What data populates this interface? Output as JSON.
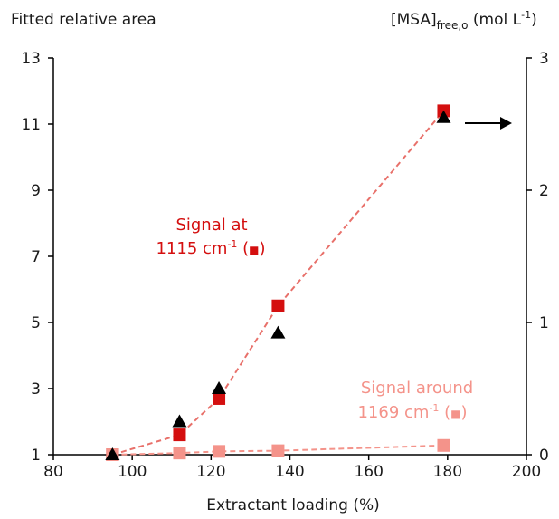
{
  "chart_data": {
    "type": "scatter",
    "ylabel_left": "Fitted relative area",
    "ylabel_right": {
      "main": "[MSA]",
      "sub": "free,o",
      "tail": " (mol L",
      "sup": "-1",
      "end": ")"
    },
    "xlabel": "Extractant loading (%)",
    "xlim": [
      80,
      200
    ],
    "ylim_left": [
      1,
      13
    ],
    "ylim_right": [
      0,
      3
    ],
    "x_ticks": [
      "80",
      "100",
      "120",
      "140",
      "160",
      "180",
      "200"
    ],
    "y_left_ticks": [
      "1",
      "3",
      "5",
      "7",
      "9",
      "11",
      "13"
    ],
    "y_right_ticks": [
      "0",
      "1",
      "2",
      "3"
    ],
    "grid": false,
    "series": [
      {
        "key": "signal_1115",
        "axis": "left",
        "marker": "square",
        "color": "#d40f0f",
        "line_color": "#e8706a",
        "x": [
          95,
          112,
          122,
          137,
          179
        ],
        "y": [
          1.0,
          1.6,
          2.7,
          5.5,
          11.4
        ]
      },
      {
        "key": "signal_1169",
        "axis": "left",
        "marker": "square",
        "color": "#f4938a",
        "line_color": "#f4938a",
        "x": [
          95,
          112,
          122,
          137,
          179
        ],
        "y": [
          1.0,
          1.05,
          1.1,
          1.12,
          1.28
        ]
      },
      {
        "key": "msa_free",
        "axis": "right",
        "marker": "triangle",
        "color": "#000000",
        "x": [
          95,
          112,
          122,
          137,
          179
        ],
        "y": [
          0.0,
          0.25,
          0.5,
          0.92,
          2.55
        ]
      }
    ],
    "annotations": {
      "signal_1115": {
        "line1": "Signal at",
        "line2a": "1115 cm",
        "sup": "-1",
        "line2b": " (",
        "marker": "■",
        "line2c": ")",
        "color": "#d40f0f"
      },
      "signal_1169": {
        "line1": "Signal around",
        "line2a": "1169 cm",
        "sup": "-1",
        "line2b": " (",
        "marker": "■",
        "line2c": ")",
        "color": "#f4938a"
      }
    }
  }
}
